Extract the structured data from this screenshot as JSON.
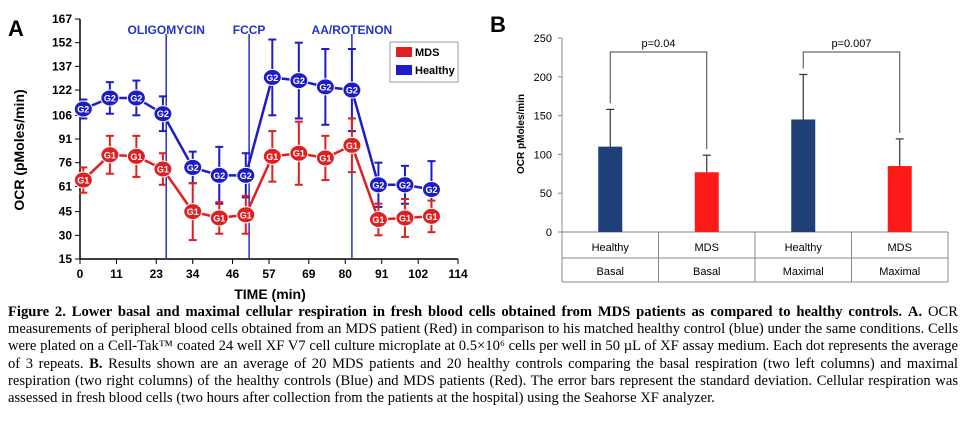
{
  "panel_a": {
    "label": "A",
    "chart_data": {
      "type": "line",
      "xlabel": "TIME (min)",
      "ylabel": "OCR (pMoles/min)",
      "xticks": [
        0,
        11,
        23,
        34,
        46,
        57,
        69,
        80,
        91,
        102,
        114
      ],
      "yticks": [
        15,
        30,
        45,
        61,
        76,
        91,
        106,
        122,
        137,
        152,
        167
      ],
      "xlim": [
        0,
        114
      ],
      "ylim": [
        15,
        167
      ],
      "injections": [
        {
          "name": "OLIGOMYCIN",
          "x": 26
        },
        {
          "name": "FCCP",
          "x": 51
        },
        {
          "name": "AA/ROTENON",
          "x": 82
        }
      ],
      "legend": [
        "MDS",
        "Healthy"
      ],
      "series": [
        {
          "name": "Healthy",
          "group": "G2",
          "color": "#1c1cc8",
          "x": [
            1,
            9,
            17,
            25,
            34,
            42,
            50,
            58,
            66,
            74,
            82,
            90,
            98,
            106
          ],
          "y": [
            110,
            117,
            117,
            107,
            73,
            68,
            68,
            130,
            128,
            124,
            122,
            62,
            62,
            59
          ],
          "err": [
            6,
            10,
            11,
            11,
            10,
            18,
            14,
            24,
            24,
            24,
            26,
            14,
            12,
            18
          ]
        },
        {
          "name": "MDS",
          "group": "G1",
          "color": "#e02020",
          "x": [
            1,
            9,
            17,
            25,
            34,
            42,
            50,
            58,
            66,
            74,
            82,
            90,
            98,
            106
          ],
          "y": [
            65,
            81,
            80,
            72,
            45,
            41,
            43,
            80,
            82,
            79,
            87,
            40,
            41,
            42
          ],
          "err": [
            8,
            12,
            13,
            10,
            18,
            10,
            12,
            16,
            20,
            14,
            17,
            10,
            12,
            10
          ]
        }
      ]
    }
  },
  "panel_b": {
    "label": "B",
    "chart_data": {
      "type": "bar",
      "ylabel": "OCR pMoles/min",
      "ylim": [
        0,
        250
      ],
      "yticks": [
        0,
        50,
        100,
        150,
        200,
        250
      ],
      "categories": [
        {
          "group": "Healthy",
          "condition": "Basal"
        },
        {
          "group": "MDS",
          "condition": "Basal"
        },
        {
          "group": "Healthy",
          "condition": "Maximal"
        },
        {
          "group": "MDS",
          "condition": "Maximal"
        }
      ],
      "values": [
        110,
        77,
        145,
        85
      ],
      "errors": [
        48,
        22,
        58,
        35
      ],
      "colors": [
        "#1f3f78",
        "#ff1a1a",
        "#1f3f78",
        "#ff1a1a"
      ],
      "annotations": [
        {
          "text": "p=0.04",
          "between": [
            0,
            1
          ]
        },
        {
          "text": "p=0.007",
          "between": [
            2,
            3
          ]
        }
      ]
    }
  },
  "caption": {
    "title": "Figure 2. Lower basal and maximal cellular respiration in fresh blood cells obtained from MDS patients as compared to healthy controls.",
    "a_label": "A.",
    "a_text": "OCR measurements of peripheral blood cells obtained from an MDS patient (Red) in comparison to his matched healthy control (blue) under the same conditions. Cells were plated on a Cell-Tak™ coated 24 well XF V7 cell culture microplate at 0.5×10⁶ cells per well in 50 µL of XF assay medium. Each dot represents the average of 3 repeats.",
    "b_label": "B.",
    "b_text": "Results shown are an average of 20 MDS patients and 20 healthy controls comparing the basal respiration (two left columns) and maximal respiration (two right columns) of the healthy controls (Blue) and MDS patients (Red). The error bars represent the standard deviation. Cellular respiration was assessed in fresh blood cells (two hours after collection from the patients at the hospital) using the Seahorse XF analyzer."
  }
}
